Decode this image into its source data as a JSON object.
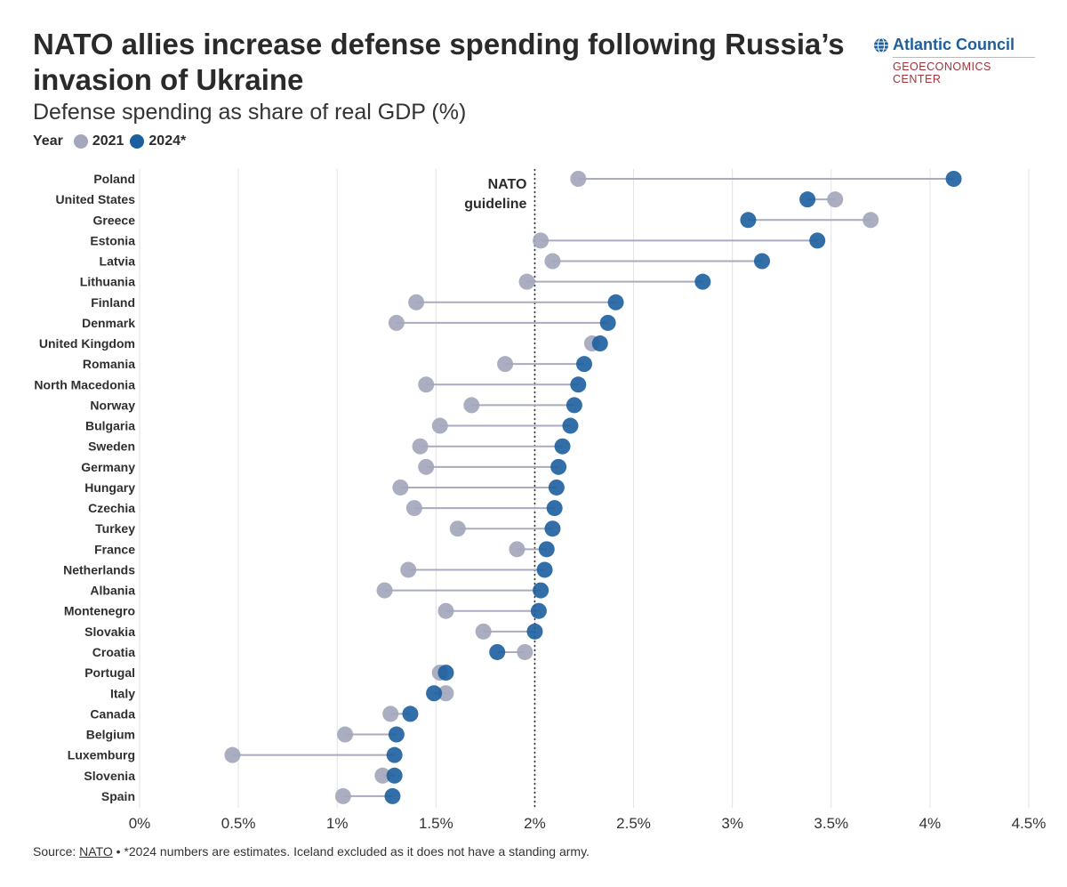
{
  "title": "NATO allies increase defense spending following Russia’s invasion of Ukraine",
  "subtitle": "Defense spending as share of real GDP (%)",
  "legend": {
    "label": "Year",
    "entries": [
      {
        "name": "2021",
        "color": "#a4a6bc"
      },
      {
        "name": "2024*",
        "color": "#1c5f9f"
      }
    ]
  },
  "brand": {
    "name": "Atlantic Council",
    "sub": "GEOECONOMICS CENTER",
    "icon": "globe-icon"
  },
  "source": {
    "prefix": "Source: ",
    "link": "NATO",
    "note": " • *2024 numbers are estimates. Iceland excluded as it does not have a standing army."
  },
  "chart_data": {
    "type": "dumbbell",
    "x_axis": {
      "ticks": [
        0,
        0.5,
        1,
        1.5,
        2,
        2.5,
        3,
        3.5,
        4,
        4.5
      ],
      "tick_labels": [
        "0%",
        "0.5%",
        "1%",
        "1.5%",
        "2%",
        "2.5%",
        "3%",
        "3.5%",
        "4%",
        "4.5%"
      ],
      "range": [
        0,
        4.5
      ]
    },
    "grid": true,
    "reference_line": {
      "value": 2,
      "label": [
        "NATO",
        "guideline"
      ]
    },
    "colors": {
      "2021": "#a4a6bc",
      "2024": "#1c5f9f",
      "connector": "#a9abbf"
    },
    "rows": [
      {
        "country": "Poland",
        "y2021": 2.22,
        "y2024": 4.12
      },
      {
        "country": "United States",
        "y2021": 3.52,
        "y2024": 3.38
      },
      {
        "country": "Greece",
        "y2021": 3.7,
        "y2024": 3.08
      },
      {
        "country": "Estonia",
        "y2021": 2.03,
        "y2024": 3.43
      },
      {
        "country": "Latvia",
        "y2021": 2.09,
        "y2024": 3.15
      },
      {
        "country": "Lithuania",
        "y2021": 1.96,
        "y2024": 2.85
      },
      {
        "country": "Finland",
        "y2021": 1.4,
        "y2024": 2.41
      },
      {
        "country": "Denmark",
        "y2021": 1.3,
        "y2024": 2.37
      },
      {
        "country": "United Kingdom",
        "y2021": 2.29,
        "y2024": 2.33
      },
      {
        "country": "Romania",
        "y2021": 1.85,
        "y2024": 2.25
      },
      {
        "country": "North Macedonia",
        "y2021": 1.45,
        "y2024": 2.22
      },
      {
        "country": "Norway",
        "y2021": 1.68,
        "y2024": 2.2
      },
      {
        "country": "Bulgaria",
        "y2021": 1.52,
        "y2024": 2.18
      },
      {
        "country": "Sweden",
        "y2021": 1.42,
        "y2024": 2.14
      },
      {
        "country": "Germany",
        "y2021": 1.45,
        "y2024": 2.12
      },
      {
        "country": "Hungary",
        "y2021": 1.32,
        "y2024": 2.11
      },
      {
        "country": "Czechia",
        "y2021": 1.39,
        "y2024": 2.1
      },
      {
        "country": "Turkey",
        "y2021": 1.61,
        "y2024": 2.09
      },
      {
        "country": "France",
        "y2021": 1.91,
        "y2024": 2.06
      },
      {
        "country": "Netherlands",
        "y2021": 1.36,
        "y2024": 2.05
      },
      {
        "country": "Albania",
        "y2021": 1.24,
        "y2024": 2.03
      },
      {
        "country": "Montenegro",
        "y2021": 1.55,
        "y2024": 2.02
      },
      {
        "country": "Slovakia",
        "y2021": 1.74,
        "y2024": 2.0
      },
      {
        "country": "Croatia",
        "y2021": 1.95,
        "y2024": 1.81
      },
      {
        "country": "Portugal",
        "y2021": 1.52,
        "y2024": 1.55
      },
      {
        "country": "Italy",
        "y2021": 1.55,
        "y2024": 1.49
      },
      {
        "country": "Canada",
        "y2021": 1.27,
        "y2024": 1.37
      },
      {
        "country": "Belgium",
        "y2021": 1.04,
        "y2024": 1.3
      },
      {
        "country": "Luxemburg",
        "y2021": 0.47,
        "y2024": 1.29
      },
      {
        "country": "Slovenia",
        "y2021": 1.23,
        "y2024": 1.29
      },
      {
        "country": "Spain",
        "y2021": 1.03,
        "y2024": 1.28
      }
    ]
  }
}
